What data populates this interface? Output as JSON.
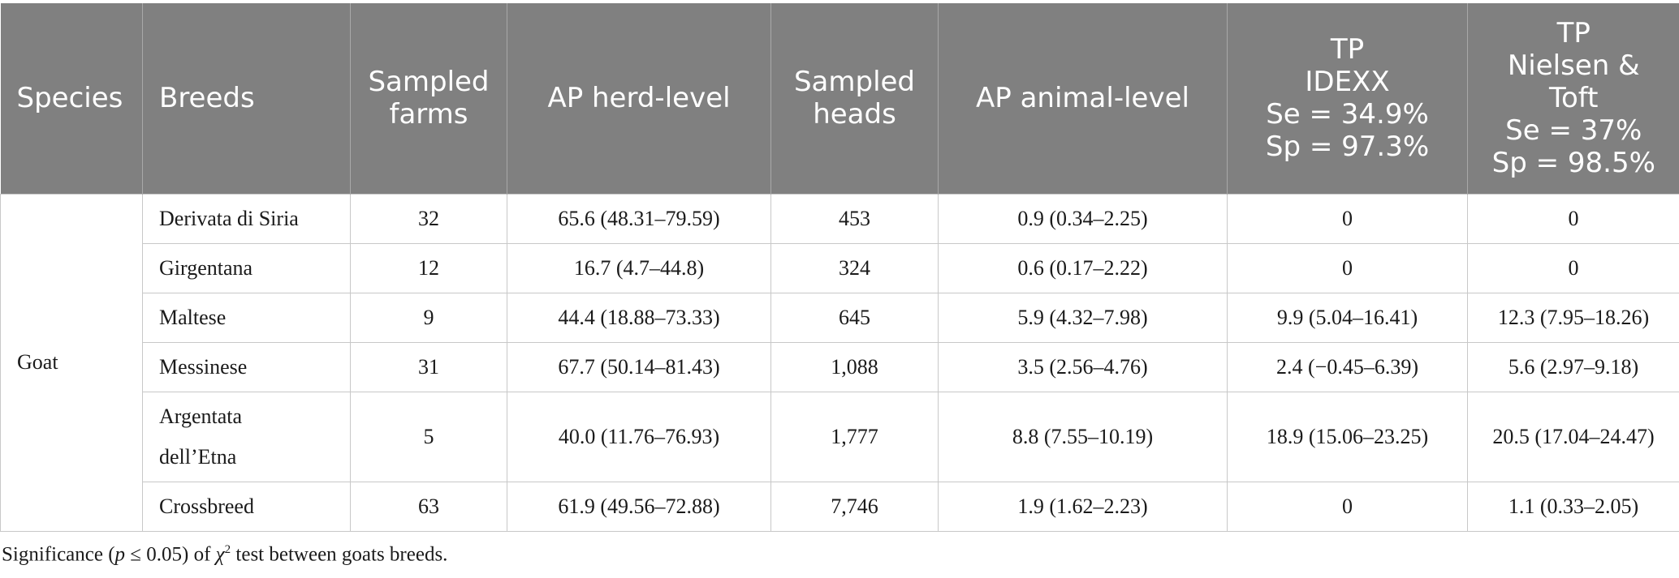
{
  "headers": {
    "species": "Species",
    "breeds": "Breeds",
    "sampled_farms": [
      "Sampled",
      "farms"
    ],
    "ap_herd": "AP herd-level",
    "sampled_heads": [
      "Sampled",
      "heads"
    ],
    "ap_animal": "AP animal-level",
    "tp_idexx": [
      "TP",
      "IDEXX",
      "Se = 34.9%",
      "Sp = 97.3%"
    ],
    "tp_nielsen": [
      "TP",
      "Nielsen &",
      "Toft",
      "Se = 37%",
      "Sp = 98.5%"
    ]
  },
  "species_value": "Goat",
  "rows": [
    {
      "breed": [
        "Derivata di Siria"
      ],
      "farms": "32",
      "ap_herd": "65.6 (48.31–79.59)",
      "heads": "453",
      "ap_animal": "0.9 (0.34–2.25)",
      "tp_idexx": "0",
      "tp_nielsen": "0"
    },
    {
      "breed": [
        "Girgentana"
      ],
      "farms": "12",
      "ap_herd": "16.7 (4.7–44.8)",
      "heads": "324",
      "ap_animal": "0.6 (0.17–2.22)",
      "tp_idexx": "0",
      "tp_nielsen": "0"
    },
    {
      "breed": [
        "Maltese"
      ],
      "farms": "9",
      "ap_herd": "44.4 (18.88–73.33)",
      "heads": "645",
      "ap_animal": "5.9 (4.32–7.98)",
      "tp_idexx": "9.9 (5.04–16.41)",
      "tp_nielsen": "12.3 (7.95–18.26)"
    },
    {
      "breed": [
        "Messinese"
      ],
      "farms": "31",
      "ap_herd": "67.7 (50.14–81.43)",
      "heads": "1,088",
      "ap_animal": "3.5 (2.56–4.76)",
      "tp_idexx": "2.4 (−0.45–6.39)",
      "tp_nielsen": "5.6 (2.97–9.18)"
    },
    {
      "breed": [
        "Argentata",
        "dell’Etna"
      ],
      "farms": "5",
      "ap_herd": "40.0 (11.76–76.93)",
      "heads": "1,777",
      "ap_animal": "8.8 (7.55–10.19)",
      "tp_idexx": "18.9 (15.06–23.25)",
      "tp_nielsen": "20.5 (17.04–24.47)"
    },
    {
      "breed": [
        "Crossbreed"
      ],
      "farms": "63",
      "ap_herd": "61.9 (49.56–72.88)",
      "heads": "7,746",
      "ap_animal": "1.9 (1.62–2.23)",
      "tp_idexx": "0",
      "tp_nielsen": "1.1 (0.33–2.05)"
    }
  ],
  "footnote": {
    "prefix": "Significance (",
    "p": "p",
    "mid": " ≤ 0.05) of ",
    "chi": "χ",
    "sup": "2",
    "suffix": " test between goats breeds."
  }
}
